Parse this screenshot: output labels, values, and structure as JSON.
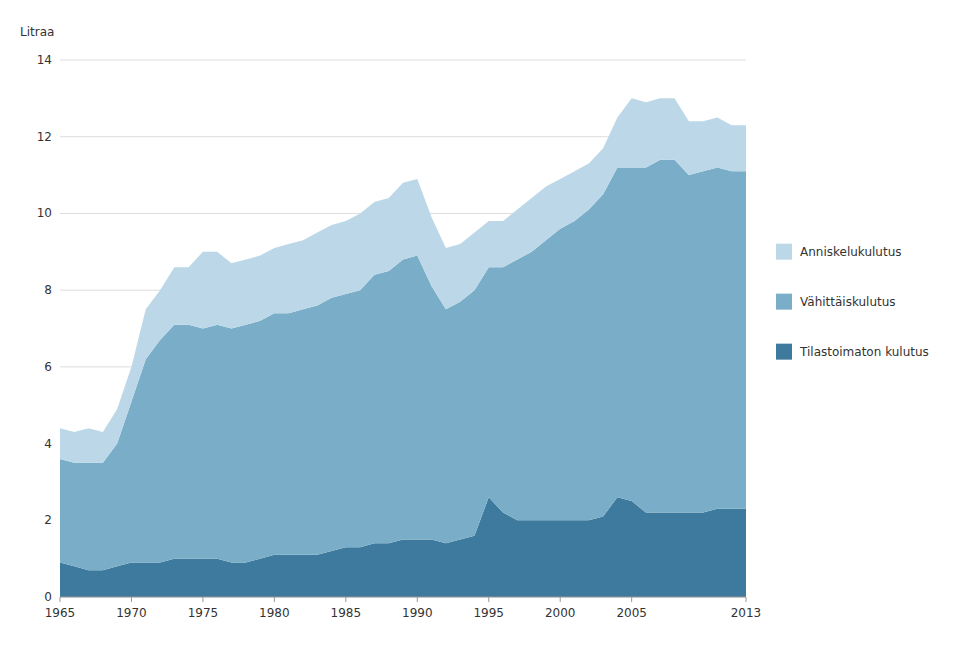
{
  "chart_data": {
    "type": "area",
    "stacked": true,
    "y_label": "Litraa",
    "x": [
      1965,
      1966,
      1967,
      1968,
      1969,
      1970,
      1971,
      1972,
      1973,
      1974,
      1975,
      1976,
      1977,
      1978,
      1979,
      1980,
      1981,
      1982,
      1983,
      1984,
      1985,
      1986,
      1987,
      1988,
      1989,
      1990,
      1991,
      1992,
      1993,
      1994,
      1995,
      1996,
      1997,
      1998,
      1999,
      2000,
      2001,
      2002,
      2003,
      2004,
      2005,
      2006,
      2007,
      2008,
      2009,
      2010,
      2011,
      2012,
      2013
    ],
    "series": [
      {
        "name": "Tilastoimaton kulutus",
        "color": "#3d7a9e",
        "values": [
          0.9,
          0.8,
          0.7,
          0.7,
          0.8,
          0.9,
          0.9,
          0.9,
          1.0,
          1.0,
          1.0,
          1.0,
          0.9,
          0.9,
          1.0,
          1.1,
          1.1,
          1.1,
          1.1,
          1.2,
          1.3,
          1.3,
          1.4,
          1.4,
          1.5,
          1.5,
          1.5,
          1.4,
          1.5,
          1.6,
          2.6,
          2.2,
          2.0,
          2.0,
          2.0,
          2.0,
          2.0,
          2.0,
          2.1,
          2.6,
          2.5,
          2.2,
          2.2,
          2.2,
          2.2,
          2.2,
          2.3,
          2.3,
          2.3
        ]
      },
      {
        "name": "Vähittäiskulutus",
        "color": "#7aaec8",
        "values": [
          2.7,
          2.7,
          2.8,
          2.8,
          3.2,
          4.2,
          5.3,
          5.8,
          6.1,
          6.1,
          6.0,
          6.1,
          6.1,
          6.2,
          6.2,
          6.3,
          6.3,
          6.4,
          6.5,
          6.6,
          6.6,
          6.7,
          7.0,
          7.1,
          7.3,
          7.4,
          6.6,
          6.1,
          6.2,
          6.4,
          6.0,
          6.4,
          6.8,
          7.0,
          7.3,
          7.6,
          7.8,
          8.1,
          8.4,
          8.6,
          8.7,
          9.0,
          9.2,
          9.2,
          8.8,
          8.9,
          8.9,
          8.8,
          8.8
        ]
      },
      {
        "name": "Anniskelukulutus",
        "color": "#bcd8e8",
        "values": [
          0.8,
          0.8,
          0.9,
          0.8,
          0.9,
          0.9,
          1.3,
          1.3,
          1.5,
          1.5,
          2.0,
          1.9,
          1.7,
          1.7,
          1.7,
          1.7,
          1.8,
          1.8,
          1.9,
          1.9,
          1.9,
          2.0,
          1.9,
          1.9,
          2.0,
          2.0,
          1.8,
          1.6,
          1.5,
          1.5,
          1.2,
          1.2,
          1.3,
          1.4,
          1.4,
          1.3,
          1.3,
          1.2,
          1.2,
          1.3,
          1.8,
          1.7,
          1.6,
          1.6,
          1.4,
          1.3,
          1.3,
          1.2,
          1.2
        ]
      }
    ],
    "xlim": [
      1965,
      2013
    ],
    "ylim": [
      0,
      14
    ],
    "xticks": [
      1965,
      1970,
      1975,
      1980,
      1985,
      1990,
      1995,
      2000,
      2005,
      2013
    ],
    "yticks": [
      0,
      2,
      4,
      6,
      8,
      10,
      12,
      14
    ],
    "grid": true,
    "legend": "right"
  }
}
